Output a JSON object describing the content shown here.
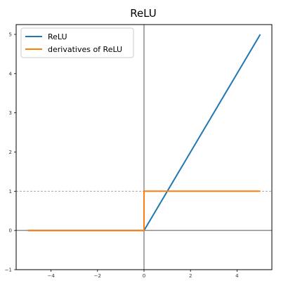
{
  "chart_data": {
    "type": "line",
    "title": "ReLU",
    "xlim": [
      -5.5,
      5.5
    ],
    "ylim": [
      -1,
      5.25
    ],
    "xticks": [
      -4,
      -2,
      0,
      2,
      4
    ],
    "yticks": [
      -1,
      0,
      1,
      2,
      3,
      4,
      5
    ],
    "xtick_labels": [
      "−4",
      "−2",
      "0",
      "2",
      "4"
    ],
    "ytick_labels": [
      "−1",
      "0",
      "1",
      "2",
      "3",
      "4",
      "5"
    ],
    "grid": false,
    "legend_position": "top-left",
    "reference_lines": {
      "vertical_x": 0,
      "horizontal_y": 0,
      "dashed_y": 1
    },
    "series": [
      {
        "name": "ReLU",
        "color": "#1f77b4",
        "x": [
          -5,
          0,
          5
        ],
        "y": [
          0,
          0,
          5
        ]
      },
      {
        "name": "derivatives of ReLU",
        "color": "#ff7f0e",
        "x": [
          -5,
          0,
          0,
          5
        ],
        "y": [
          0,
          0,
          1,
          1
        ]
      }
    ]
  }
}
